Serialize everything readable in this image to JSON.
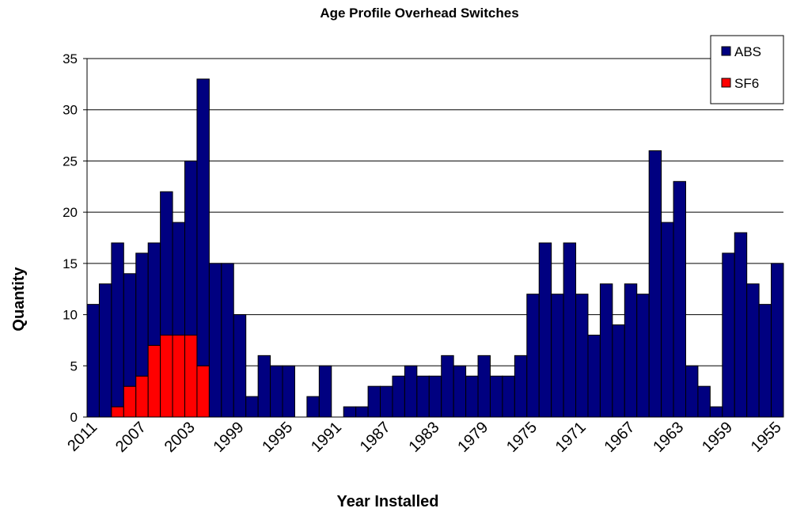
{
  "chart_data": {
    "type": "stacked_bar",
    "title": "Age Profile Overhead Switches",
    "x_label": "Year Installed",
    "y_label": "Quantity",
    "categories": [
      "2011",
      null,
      null,
      null,
      "2007",
      null,
      null,
      null,
      "2003",
      null,
      null,
      null,
      "1999",
      null,
      null,
      null,
      "1995",
      null,
      null,
      null,
      "1991",
      null,
      null,
      null,
      "1987",
      null,
      null,
      null,
      "1983",
      null,
      null,
      null,
      "1979",
      null,
      null,
      null,
      "1975",
      null,
      null,
      null,
      "1971",
      null,
      null,
      null,
      "1967",
      null,
      null,
      null,
      "1963",
      null,
      null,
      null,
      "1959",
      null,
      null,
      null,
      "1955"
    ],
    "series": [
      {
        "name": "SF6",
        "color": "#ff0000",
        "values": [
          0,
          0,
          1,
          3,
          4,
          7,
          8,
          8,
          8,
          5,
          0,
          0,
          0,
          0,
          0,
          0,
          0,
          0,
          0,
          0,
          0,
          0,
          0,
          0,
          0,
          0,
          0,
          0,
          0,
          0,
          0,
          0,
          0,
          0,
          0,
          0,
          0,
          0,
          0,
          0,
          0,
          0,
          0,
          0,
          0,
          0,
          0,
          0,
          0,
          0,
          0,
          0,
          0,
          0,
          0,
          0,
          0
        ]
      },
      {
        "name": "ABS",
        "color": "#000080",
        "values": [
          11,
          13,
          16,
          11,
          12,
          10,
          14,
          11,
          17,
          28,
          15,
          15,
          10,
          2,
          6,
          5,
          5,
          0,
          2,
          5,
          0,
          1,
          1,
          3,
          3,
          4,
          5,
          4,
          4,
          6,
          5,
          4,
          6,
          4,
          4,
          6,
          12,
          17,
          12,
          17,
          12,
          8,
          13,
          9,
          13,
          12,
          26,
          19,
          23,
          5,
          3,
          1,
          16,
          18,
          13,
          11,
          15
        ]
      }
    ],
    "ylim": [
      0,
      35
    ],
    "yticks": [
      0,
      5,
      10,
      15,
      20,
      25,
      30,
      35
    ],
    "grid": true,
    "legend": "top-right"
  }
}
